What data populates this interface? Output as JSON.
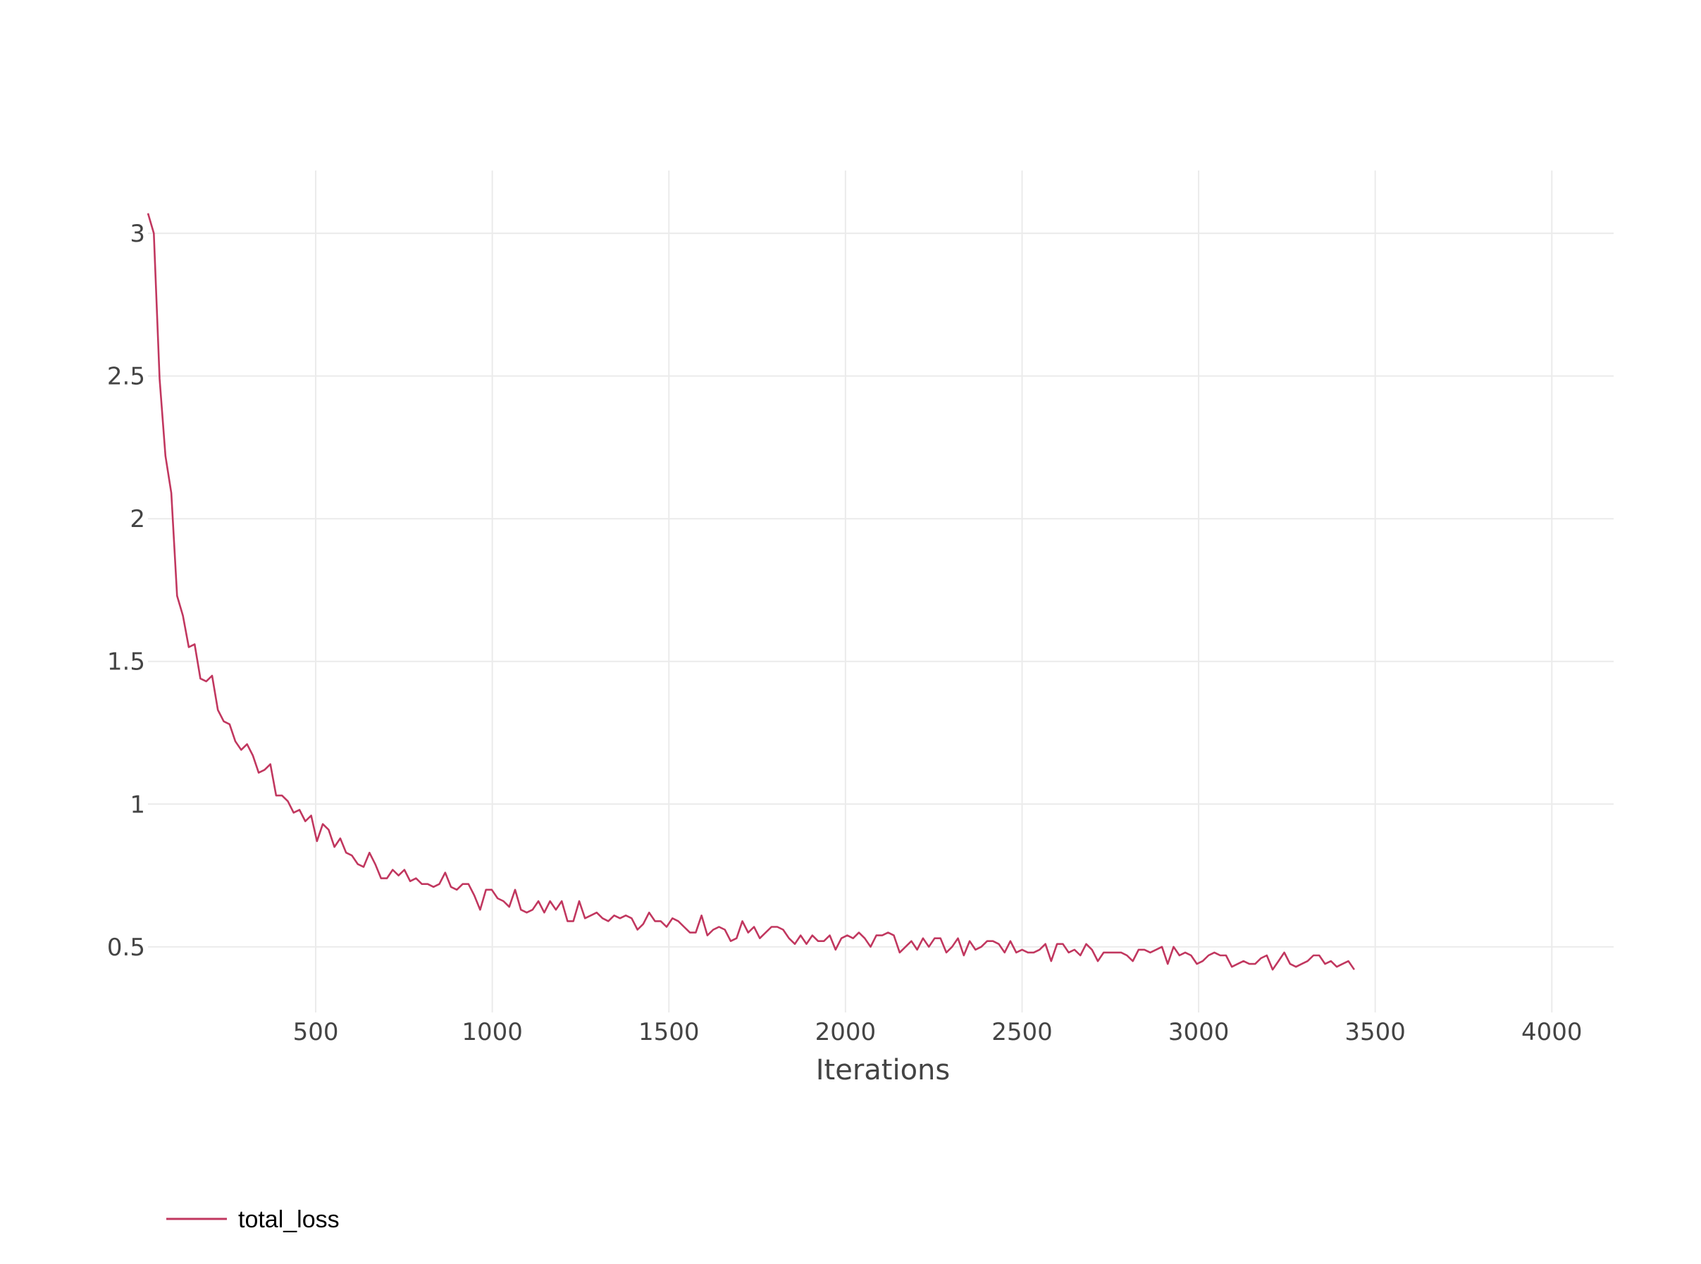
{
  "chart_data": {
    "type": "line",
    "title": "",
    "xlabel": "Iterations",
    "ylabel": "",
    "xlim": [
      25,
      4175
    ],
    "ylim": [
      0.27,
      3.22
    ],
    "grid": true,
    "legend_position": "bottom-left",
    "x_ticks": [
      500,
      1000,
      1500,
      2000,
      2500,
      3000,
      3500,
      4000
    ],
    "x_tick_labels": [
      "500",
      "1000",
      "1500",
      "2000",
      "2500",
      "3000",
      "3500",
      "4000"
    ],
    "y_ticks": [
      0.5,
      1,
      1.5,
      2,
      2.5,
      3
    ],
    "y_tick_labels": [
      "0.5",
      "1",
      "1.5",
      "2",
      "2.5",
      "3"
    ],
    "series": [
      {
        "name": "total_loss",
        "color": "#c1375f",
        "x_start": 25,
        "x_step": 16.5,
        "y": [
          3.07,
          3.0,
          2.49,
          2.22,
          2.09,
          1.73,
          1.66,
          1.55,
          1.56,
          1.44,
          1.43,
          1.45,
          1.33,
          1.29,
          1.28,
          1.22,
          1.19,
          1.21,
          1.17,
          1.11,
          1.12,
          1.14,
          1.03,
          1.03,
          1.01,
          0.97,
          0.98,
          0.94,
          0.96,
          0.87,
          0.93,
          0.91,
          0.85,
          0.88,
          0.83,
          0.82,
          0.79,
          0.78,
          0.83,
          0.79,
          0.74,
          0.74,
          0.77,
          0.75,
          0.77,
          0.73,
          0.74,
          0.72,
          0.72,
          0.71,
          0.72,
          0.76,
          0.71,
          0.7,
          0.72,
          0.72,
          0.68,
          0.63,
          0.7,
          0.7,
          0.67,
          0.66,
          0.64,
          0.7,
          0.63,
          0.62,
          0.63,
          0.66,
          0.62,
          0.66,
          0.63,
          0.66,
          0.59,
          0.59,
          0.66,
          0.6,
          0.61,
          0.62,
          0.6,
          0.59,
          0.61,
          0.6,
          0.61,
          0.6,
          0.56,
          0.58,
          0.62,
          0.59,
          0.59,
          0.57,
          0.6,
          0.59,
          0.57,
          0.55,
          0.55,
          0.61,
          0.54,
          0.56,
          0.57,
          0.56,
          0.52,
          0.53,
          0.59,
          0.55,
          0.57,
          0.53,
          0.55,
          0.57,
          0.57,
          0.56,
          0.53,
          0.51,
          0.54,
          0.51,
          0.54,
          0.52,
          0.52,
          0.54,
          0.49,
          0.53,
          0.54,
          0.53,
          0.55,
          0.53,
          0.5,
          0.54,
          0.54,
          0.55,
          0.54,
          0.48,
          0.5,
          0.52,
          0.49,
          0.53,
          0.5,
          0.53,
          0.53,
          0.48,
          0.5,
          0.53,
          0.47,
          0.52,
          0.49,
          0.5,
          0.52,
          0.52,
          0.51,
          0.48,
          0.52,
          0.48,
          0.49,
          0.48,
          0.48,
          0.49,
          0.51,
          0.45,
          0.51,
          0.51,
          0.48,
          0.49,
          0.47,
          0.51,
          0.49,
          0.45,
          0.48,
          0.48,
          0.48,
          0.48,
          0.47,
          0.45,
          0.49,
          0.49,
          0.48,
          0.49,
          0.5,
          0.44,
          0.5,
          0.47,
          0.48,
          0.47,
          0.44,
          0.45,
          0.47,
          0.48,
          0.47,
          0.47,
          0.43,
          0.44,
          0.45,
          0.44,
          0.44,
          0.46,
          0.47,
          0.42,
          0.45,
          0.48,
          0.44,
          0.43,
          0.44,
          0.45,
          0.47,
          0.47,
          0.44,
          0.45,
          0.43,
          0.44,
          0.45,
          0.42
        ]
      }
    ]
  },
  "legend": {
    "items": [
      {
        "label": "total_loss",
        "color": "#c1375f"
      }
    ]
  }
}
